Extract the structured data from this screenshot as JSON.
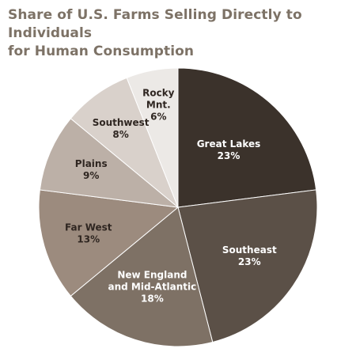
{
  "title_lines": [
    "Share of U.S. Farms Selling Directly to Individuals",
    "for Human Consumption"
  ],
  "chart_data": {
    "type": "pie",
    "title": "Share of U.S. Farms Selling Directly to Individuals for Human Consumption",
    "start": "12 o'clock",
    "direction": "clockwise",
    "slices": [
      {
        "label_lines": [
          "Great Lakes"
        ],
        "percent_label": "23%",
        "value": 23,
        "color": "#3b322b",
        "text_color": "#ffffff"
      },
      {
        "label_lines": [
          "Southeast"
        ],
        "percent_label": "23%",
        "value": 23,
        "color": "#5b5047",
        "text_color": "#ffffff"
      },
      {
        "label_lines": [
          "New England",
          "and Mid-Atlantic"
        ],
        "percent_label": "18%",
        "value": 18,
        "color": "#7e7165",
        "text_color": "#ffffff"
      },
      {
        "label_lines": [
          "Far West"
        ],
        "percent_label": "13%",
        "value": 13,
        "color": "#9c8b7e",
        "text_color": "#2f2621"
      },
      {
        "label_lines": [
          "Plains"
        ],
        "percent_label": "9%",
        "value": 9,
        "color": "#bcb0a7",
        "text_color": "#2f2621"
      },
      {
        "label_lines": [
          "Southwest"
        ],
        "percent_label": "8%",
        "value": 8,
        "color": "#d9d1cb",
        "text_color": "#2f2621"
      },
      {
        "label_lines": [
          "Rocky",
          "Mnt."
        ],
        "percent_label": "6%",
        "value": 6,
        "color": "#ece9e6",
        "text_color": "#2f2621"
      }
    ]
  }
}
